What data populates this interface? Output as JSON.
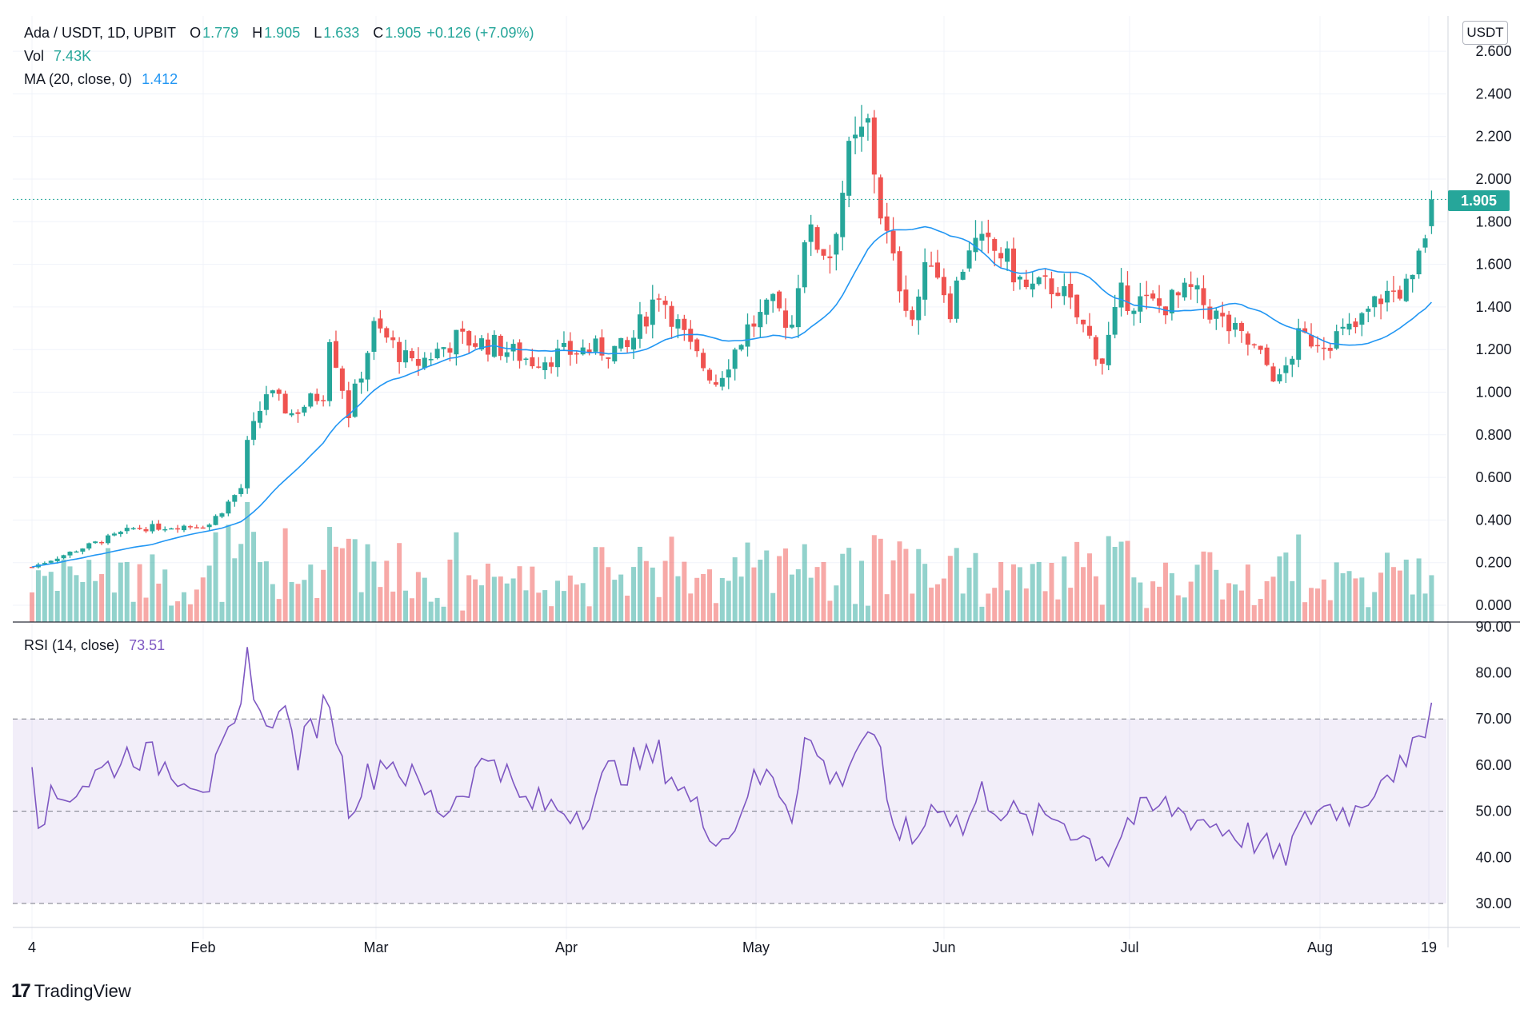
{
  "legend": {
    "symbol": "Ada / USDT, 1D, UPBIT",
    "o_label": "O",
    "o_value": "1.779",
    "h_label": "H",
    "h_value": "1.905",
    "l_label": "L",
    "l_value": "1.633",
    "c_label": "C",
    "c_value": "1.905",
    "change": "+0.126 (+7.09%)",
    "vol_label": "Vol",
    "vol_value": "7.43K",
    "ma_label": "MA (20, close, 0)",
    "ma_value": "1.412",
    "rsi_label": "RSI (14, close)",
    "rsi_value": "73.51"
  },
  "currency": "USDT",
  "last_price": "1.905",
  "brand": "TradingView",
  "colors": {
    "up": "#26a69a",
    "down": "#ef5350",
    "ma": "#2196f3",
    "rsi": "#7e57c2"
  },
  "chart_data": [
    {
      "type": "candlestick",
      "title": "Ada / USDT, 1D, UPBIT",
      "x_ticks": [
        "4",
        "Feb",
        "Mar",
        "Apr",
        "May",
        "Jun",
        "Jul",
        "Aug",
        "19"
      ],
      "y_ticks": [
        "0.000",
        "0.200",
        "0.400",
        "0.600",
        "0.800",
        "1.000",
        "1.200",
        "1.400",
        "1.600",
        "1.800",
        "2.000",
        "2.200",
        "2.400",
        "2.600"
      ],
      "ylim": [
        0,
        2.6
      ],
      "close_waypoints": [
        {
          "x": "Jan 4",
          "y": 0.18
        },
        {
          "x": "Jan 20",
          "y": 0.36
        },
        {
          "x": "Feb 1",
          "y": 0.38
        },
        {
          "x": "Feb 6",
          "y": 0.55
        },
        {
          "x": "Feb 7",
          "y": 0.75
        },
        {
          "x": "Feb 10",
          "y": 1.0
        },
        {
          "x": "Feb 14",
          "y": 0.9
        },
        {
          "x": "Feb 19",
          "y": 1.0
        },
        {
          "x": "Feb 20",
          "y": 1.28
        },
        {
          "x": "Feb 23",
          "y": 0.9
        },
        {
          "x": "Feb 27",
          "y": 1.3
        },
        {
          "x": "Mar 1",
          "y": 1.25
        },
        {
          "x": "Mar 5",
          "y": 1.12
        },
        {
          "x": "Mar 12",
          "y": 1.25
        },
        {
          "x": "Mar 18",
          "y": 1.22
        },
        {
          "x": "Mar 24",
          "y": 1.15
        },
        {
          "x": "Apr 1",
          "y": 1.2
        },
        {
          "x": "Apr 8",
          "y": 1.2
        },
        {
          "x": "Apr 13",
          "y": 1.48
        },
        {
          "x": "Apr 18",
          "y": 1.2
        },
        {
          "x": "Apr 22",
          "y": 1.05
        },
        {
          "x": "Apr 27",
          "y": 1.3
        },
        {
          "x": "May 1",
          "y": 1.4
        },
        {
          "x": "May 4",
          "y": 1.32
        },
        {
          "x": "May 6",
          "y": 1.75
        },
        {
          "x": "May 10",
          "y": 1.65
        },
        {
          "x": "May 13",
          "y": 2.1
        },
        {
          "x": "May 16",
          "y": 2.25
        },
        {
          "x": "May 18",
          "y": 1.85
        },
        {
          "x": "May 20",
          "y": 1.6
        },
        {
          "x": "May 23",
          "y": 1.35
        },
        {
          "x": "May 26",
          "y": 1.65
        },
        {
          "x": "May 29",
          "y": 1.4
        },
        {
          "x": "Jun 1",
          "y": 1.7
        },
        {
          "x": "Jun 6",
          "y": 1.65
        },
        {
          "x": "Jun 10",
          "y": 1.48
        },
        {
          "x": "Jun 15",
          "y": 1.5
        },
        {
          "x": "Jun 22",
          "y": 1.15
        },
        {
          "x": "Jun 25",
          "y": 1.45
        },
        {
          "x": "Jul 1",
          "y": 1.4
        },
        {
          "x": "Jul 6",
          "y": 1.47
        },
        {
          "x": "Jul 12",
          "y": 1.3
        },
        {
          "x": "Jul 16",
          "y": 1.2
        },
        {
          "x": "Jul 20",
          "y": 1.05
        },
        {
          "x": "Jul 23",
          "y": 1.25
        },
        {
          "x": "Jul 28",
          "y": 1.25
        },
        {
          "x": "Aug 1",
          "y": 1.3
        },
        {
          "x": "Aug 5",
          "y": 1.45
        },
        {
          "x": "Aug 10",
          "y": 1.5
        },
        {
          "x": "Aug 12",
          "y": 1.75
        },
        {
          "x": "Aug 13",
          "y": 1.905
        }
      ],
      "last_close": 1.905,
      "ma_series_name": "MA (20, close, 0)",
      "ma_last": 1.412,
      "volume_series_name": "Vol",
      "volume_last": "7.43K"
    },
    {
      "type": "line",
      "title": "RSI (14, close)",
      "y_ticks": [
        "30.00",
        "40.00",
        "50.00",
        "60.00",
        "70.00",
        "80.00",
        "90.00"
      ],
      "ylim": [
        30,
        90
      ],
      "bands": [
        30,
        50,
        70
      ],
      "last": 73.51,
      "waypoints": [
        {
          "x": "Jan 4",
          "y": 62
        },
        {
          "x": "Jan 5",
          "y": 50
        },
        {
          "x": "Jan 20",
          "y": 63
        },
        {
          "x": "Feb 1",
          "y": 56
        },
        {
          "x": "Feb 6",
          "y": 70
        },
        {
          "x": "Feb 7",
          "y": 84
        },
        {
          "x": "Feb 10",
          "y": 66
        },
        {
          "x": "Feb 12",
          "y": 75
        },
        {
          "x": "Feb 15",
          "y": 62
        },
        {
          "x": "Feb 20",
          "y": 75
        },
        {
          "x": "Feb 23",
          "y": 52
        },
        {
          "x": "Mar 1",
          "y": 62
        },
        {
          "x": "Mar 10",
          "y": 50
        },
        {
          "x": "Mar 18",
          "y": 63
        },
        {
          "x": "Mar 22",
          "y": 52
        },
        {
          "x": "Apr 1",
          "y": 50
        },
        {
          "x": "Apr 5",
          "y": 58
        },
        {
          "x": "Apr 13",
          "y": 62
        },
        {
          "x": "Apr 20",
          "y": 48
        },
        {
          "x": "Apr 24",
          "y": 44
        },
        {
          "x": "Apr 27",
          "y": 55
        },
        {
          "x": "May 1",
          "y": 58
        },
        {
          "x": "May 4",
          "y": 50
        },
        {
          "x": "May 6",
          "y": 66
        },
        {
          "x": "May 11",
          "y": 56
        },
        {
          "x": "May 16",
          "y": 68
        },
        {
          "x": "May 18",
          "y": 60
        },
        {
          "x": "May 19",
          "y": 50
        },
        {
          "x": "May 23",
          "y": 43
        },
        {
          "x": "May 27",
          "y": 53
        },
        {
          "x": "May 31",
          "y": 46
        },
        {
          "x": "Jun 3",
          "y": 54
        },
        {
          "x": "Jun 10",
          "y": 47
        },
        {
          "x": "Jun 15",
          "y": 49
        },
        {
          "x": "Jun 23",
          "y": 40
        },
        {
          "x": "Jun 26",
          "y": 48
        },
        {
          "x": "Jul 2",
          "y": 51
        },
        {
          "x": "Jul 10",
          "y": 47
        },
        {
          "x": "Jul 16",
          "y": 44
        },
        {
          "x": "Jul 20",
          "y": 39
        },
        {
          "x": "Jul 26",
          "y": 51
        },
        {
          "x": "Aug 1",
          "y": 50
        },
        {
          "x": "Aug 6",
          "y": 60
        },
        {
          "x": "Aug 9",
          "y": 58
        },
        {
          "x": "Aug 11",
          "y": 66
        },
        {
          "x": "Aug 13",
          "y": 73.51
        }
      ]
    }
  ]
}
